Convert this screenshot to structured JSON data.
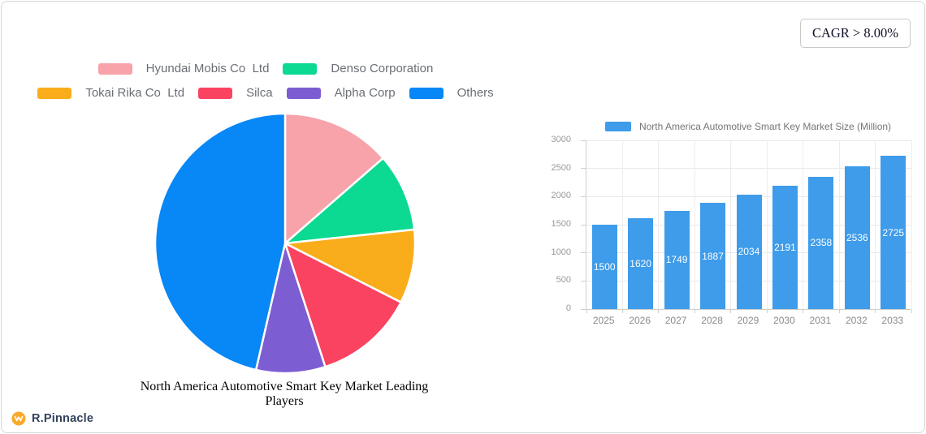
{
  "card": {
    "cagr_label": "CAGR > 8.00%"
  },
  "brand": {
    "name": "R.Pinnacle",
    "icon_color": "#F9A92B"
  },
  "legend": {
    "row1": [
      {
        "label": "Hyundai Mobis Co  Ltd",
        "color": "#F7A3A9"
      },
      {
        "label": "Denso Corporation",
        "color": "#0CD992"
      }
    ],
    "row2": [
      {
        "label": "Tokai Rika Co  Ltd",
        "color": "#FAAD1B"
      },
      {
        "label": "Silca",
        "color": "#FA4360"
      },
      {
        "label": "Alpha Corp",
        "color": "#7D5DD2"
      },
      {
        "label": "Others",
        "color": "#0887F6"
      }
    ]
  },
  "chart_data": [
    {
      "type": "pie",
      "title": "North America Automotive Smart Key Market Leading Players",
      "labels": [
        "Hyundai Mobis Co  Ltd",
        "Denso Corporation",
        "Tokai Rika Co  Ltd",
        "Silca",
        "Alpha Corp",
        "Others"
      ],
      "values": [
        13.6,
        9.7,
        9.2,
        12.5,
        8.6,
        46.4
      ],
      "unit": "percent-share-estimated-from-arc-angles",
      "colors": [
        "#F7A3A9",
        "#0CD992",
        "#FAAD1B",
        "#FA4360",
        "#7D5DD2",
        "#0887F6"
      ],
      "start_angle_deg_from_top": 0,
      "direction": "clockwise",
      "legend_position": "top"
    },
    {
      "type": "bar",
      "series_name": "North America Automotive Smart Key Market Size (Million)",
      "categories": [
        "2025",
        "2026",
        "2027",
        "2028",
        "2029",
        "2030",
        "2031",
        "2032",
        "2033"
      ],
      "values": [
        1500,
        1620,
        1749,
        1887,
        2034,
        2191,
        2358,
        2536,
        2725
      ],
      "bar_color": "#3E9CEA",
      "ylim": [
        0,
        3000
      ],
      "yticks": [
        0,
        500,
        1000,
        1500,
        2000,
        2500,
        3000
      ],
      "grid": true,
      "value_labels": "inside-bar-white-centered",
      "legend_position": "top"
    }
  ]
}
